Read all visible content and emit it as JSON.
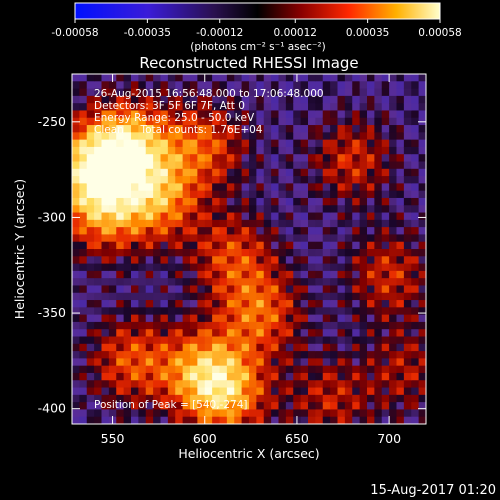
{
  "chart_data": {
    "type": "heatmap",
    "title": "Reconstructed RHESSI Image",
    "xlabel": "Heliocentric X (arcsec)",
    "ylabel": "Heliocentric Y (arcsec)",
    "xlim": [
      528,
      720
    ],
    "ylim": [
      -408,
      -225
    ],
    "x_ticks": [
      550,
      600,
      650,
      700
    ],
    "y_ticks": [
      -250,
      -300,
      -350,
      -400
    ],
    "colorbar": {
      "unit_label": "(photons cm⁻² s⁻¹ asec⁻²)",
      "range": [
        -0.00058,
        0.00058
      ],
      "tick_values": [
        -0.00058,
        -0.00035,
        -0.00012,
        0.00012,
        0.00035,
        0.00058
      ],
      "tick_labels": [
        "-0.00058",
        "-0.00035",
        "-0.00012",
        "0.00012",
        "0.00035",
        "0.00058"
      ]
    },
    "annotations": [
      "26-Aug-2015 16:56:48.000 to 17:06:48.000",
      "Detectors: 3F 5F 6F 7F, Att 0",
      "Energy Range: 25.0 - 50.0 keV",
      "Clean     Total counts: 1.76E+04"
    ],
    "peak_label": "Position of Peak = [540,-274]",
    "peak_position": [
      540,
      -274
    ],
    "hotspots": [
      {
        "x": 540,
        "y": -274,
        "amp": 1.0
      },
      {
        "x": 560,
        "y": -262,
        "amp": 0.85
      },
      {
        "x": 575,
        "y": -290,
        "amp": 0.7
      },
      {
        "x": 545,
        "y": -298,
        "amp": 0.6
      },
      {
        "x": 600,
        "y": -262,
        "amp": 0.55
      },
      {
        "x": 612,
        "y": -392,
        "amp": 0.75
      },
      {
        "x": 598,
        "y": -380,
        "amp": 0.65
      },
      {
        "x": 560,
        "y": -375,
        "amp": 0.55
      },
      {
        "x": 630,
        "y": -350,
        "amp": 0.6
      },
      {
        "x": 615,
        "y": -320,
        "amp": 0.5
      },
      {
        "x": 680,
        "y": -270,
        "amp": 0.45
      },
      {
        "x": 700,
        "y": -330,
        "amp": 0.45
      },
      {
        "x": 668,
        "y": -395,
        "amp": 0.4
      },
      {
        "x": 710,
        "y": -380,
        "amp": 0.35
      }
    ]
  },
  "footer": {
    "timestamp": "15-Aug-2017 01:20"
  },
  "colors": {
    "background": "#000000",
    "text": "#ffffff"
  }
}
